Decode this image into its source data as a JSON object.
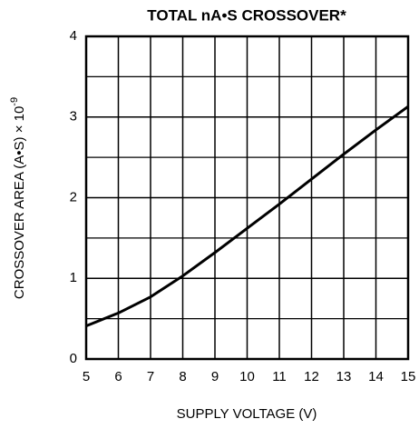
{
  "chart_data": {
    "type": "line",
    "title": "TOTAL nA•S CROSSOVER*",
    "x_label": "SUPPLY VOLTAGE (V)",
    "y_label": "CROSSOVER AREA (A•S) × 10",
    "y_label_exponent": "-9",
    "x": [
      5,
      6,
      7,
      8,
      9,
      10,
      11,
      12,
      13,
      14,
      15
    ],
    "series": [
      {
        "name": "Crossover",
        "color": "#000000",
        "values": [
          0.41,
          0.57,
          0.77,
          1.03,
          1.32,
          1.62,
          1.92,
          2.23,
          2.54,
          2.84,
          3.13
        ]
      }
    ],
    "xlim": [
      5,
      15
    ],
    "xticks": [
      5,
      6,
      7,
      8,
      9,
      10,
      11,
      12,
      13,
      14,
      15
    ],
    "ylim": [
      0,
      4
    ],
    "yticks": [
      0,
      1,
      2,
      3,
      4
    ],
    "y_minor_grid": [
      0.5,
      1.5,
      2.5,
      3.5
    ],
    "grid": true
  }
}
